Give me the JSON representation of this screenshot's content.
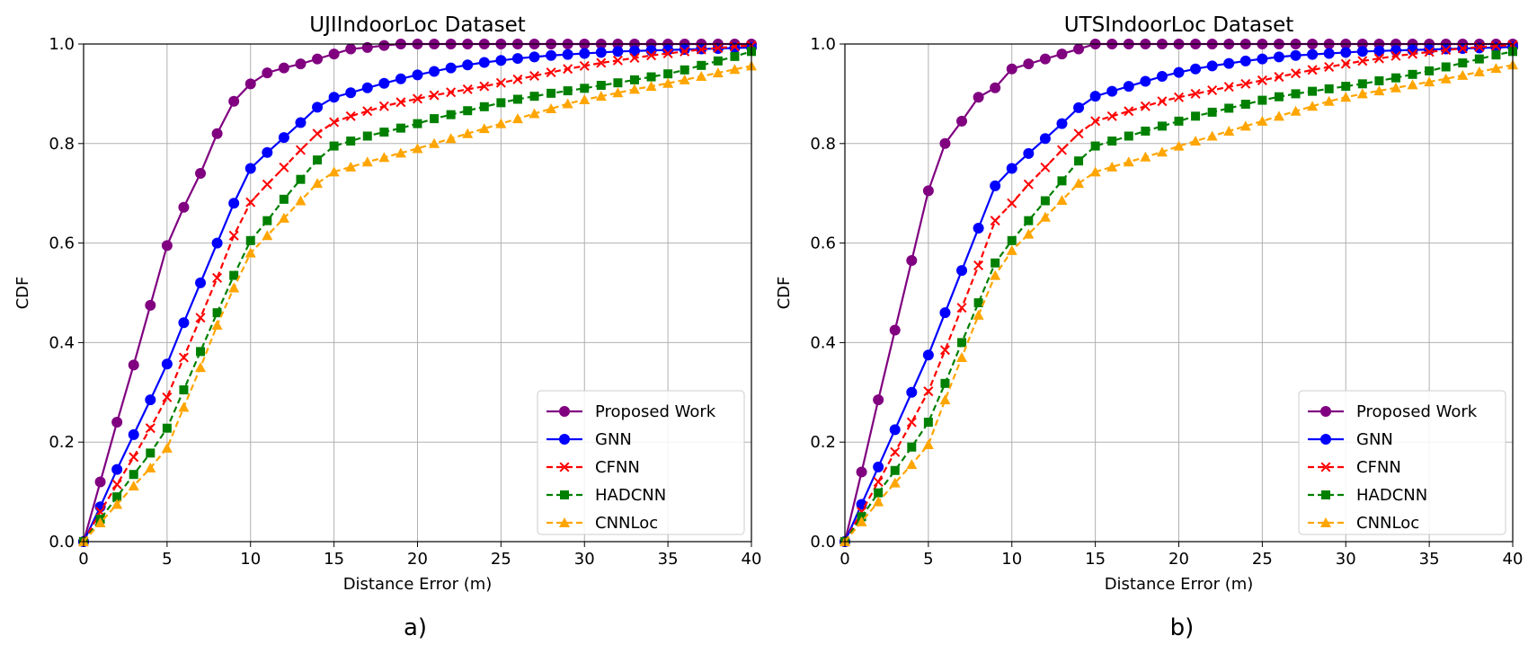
{
  "chart_data": [
    {
      "type": "line",
      "title": "UJIIndoorLoc Dataset",
      "xlabel": "Distance Error (m)",
      "ylabel": "CDF",
      "xlim": [
        0,
        40
      ],
      "ylim": [
        0,
        1
      ],
      "xticks": [
        0,
        5,
        10,
        15,
        20,
        25,
        30,
        35,
        40
      ],
      "yticks": [
        0.0,
        0.2,
        0.4,
        0.6,
        0.8,
        1.0
      ],
      "xtick_labels": [
        "0",
        "5",
        "10",
        "15",
        "20",
        "25",
        "30",
        "35",
        "40"
      ],
      "ytick_labels": [
        "0.0",
        "0.2",
        "0.4",
        "0.6",
        "0.8",
        "1.0"
      ],
      "grid": true,
      "legend_position": "lower-right",
      "caption": "a)",
      "x": [
        0,
        1,
        2,
        3,
        4,
        5,
        6,
        7,
        8,
        9,
        10,
        11,
        12,
        13,
        14,
        15,
        16,
        17,
        18,
        19,
        20,
        21,
        22,
        23,
        24,
        25,
        26,
        27,
        28,
        29,
        30,
        31,
        32,
        33,
        34,
        35,
        36,
        37,
        38,
        39,
        40
      ],
      "series": [
        {
          "name": "Proposed Work",
          "color": "#800080",
          "marker": "circle",
          "dash": false,
          "values": [
            0.0,
            0.12,
            0.24,
            0.355,
            0.475,
            0.595,
            0.672,
            0.74,
            0.82,
            0.885,
            0.92,
            0.942,
            0.952,
            0.96,
            0.97,
            0.98,
            0.99,
            0.993,
            0.997,
            1.0,
            1.0,
            1.0,
            1.0,
            1.0,
            1.0,
            1.0,
            1.0,
            1.0,
            1.0,
            1.0,
            1.0,
            1.0,
            1.0,
            1.0,
            1.0,
            1.0,
            1.0,
            1.0,
            1.0,
            1.0,
            1.0
          ]
        },
        {
          "name": "GNN",
          "color": "#0000ff",
          "marker": "circle",
          "dash": false,
          "values": [
            0.0,
            0.07,
            0.145,
            0.215,
            0.285,
            0.357,
            0.44,
            0.52,
            0.6,
            0.68,
            0.75,
            0.782,
            0.812,
            0.842,
            0.873,
            0.893,
            0.902,
            0.912,
            0.921,
            0.93,
            0.938,
            0.945,
            0.952,
            0.958,
            0.963,
            0.967,
            0.971,
            0.974,
            0.977,
            0.979,
            0.981,
            0.983,
            0.985,
            0.986,
            0.987,
            0.988,
            0.989,
            0.99,
            0.991,
            0.992,
            0.993
          ]
        },
        {
          "name": "CFNN",
          "color": "#ff0000",
          "marker": "x",
          "dash": true,
          "values": [
            0.0,
            0.06,
            0.115,
            0.17,
            0.228,
            0.29,
            0.37,
            0.45,
            0.53,
            0.615,
            0.682,
            0.718,
            0.752,
            0.787,
            0.82,
            0.843,
            0.855,
            0.865,
            0.875,
            0.883,
            0.89,
            0.897,
            0.903,
            0.909,
            0.915,
            0.922,
            0.929,
            0.936,
            0.943,
            0.95,
            0.956,
            0.962,
            0.967,
            0.972,
            0.977,
            0.981,
            0.985,
            0.989,
            0.992,
            0.995,
            0.997
          ]
        },
        {
          "name": "HADCNN",
          "color": "#008000",
          "marker": "square",
          "dash": true,
          "values": [
            0.0,
            0.045,
            0.09,
            0.135,
            0.178,
            0.228,
            0.305,
            0.382,
            0.46,
            0.535,
            0.605,
            0.645,
            0.688,
            0.728,
            0.767,
            0.795,
            0.805,
            0.815,
            0.823,
            0.831,
            0.84,
            0.85,
            0.858,
            0.866,
            0.874,
            0.882,
            0.889,
            0.895,
            0.901,
            0.906,
            0.911,
            0.917,
            0.922,
            0.928,
            0.934,
            0.94,
            0.948,
            0.957,
            0.966,
            0.975,
            0.985
          ]
        },
        {
          "name": "CNNLoc",
          "color": "#ffa500",
          "marker": "triangle",
          "dash": true,
          "values": [
            0.0,
            0.038,
            0.075,
            0.112,
            0.148,
            0.188,
            0.27,
            0.35,
            0.435,
            0.51,
            0.58,
            0.615,
            0.65,
            0.685,
            0.72,
            0.743,
            0.753,
            0.763,
            0.772,
            0.781,
            0.79,
            0.8,
            0.81,
            0.82,
            0.83,
            0.84,
            0.85,
            0.86,
            0.87,
            0.88,
            0.888,
            0.895,
            0.902,
            0.909,
            0.915,
            0.921,
            0.928,
            0.935,
            0.942,
            0.949,
            0.956
          ]
        }
      ]
    },
    {
      "type": "line",
      "title": "UTSIndoorLoc Dataset",
      "xlabel": "Distance Error (m)",
      "ylabel": "CDF",
      "xlim": [
        0,
        40
      ],
      "ylim": [
        0,
        1
      ],
      "xticks": [
        0,
        5,
        10,
        15,
        20,
        25,
        30,
        35,
        40
      ],
      "yticks": [
        0.0,
        0.2,
        0.4,
        0.6,
        0.8,
        1.0
      ],
      "xtick_labels": [
        "0",
        "5",
        "10",
        "15",
        "20",
        "25",
        "30",
        "35",
        "40"
      ],
      "ytick_labels": [
        "0.0",
        "0.2",
        "0.4",
        "0.6",
        "0.8",
        "1.0"
      ],
      "grid": true,
      "legend_position": "lower-right",
      "caption": "b)",
      "x": [
        0,
        1,
        2,
        3,
        4,
        5,
        6,
        7,
        8,
        9,
        10,
        11,
        12,
        13,
        14,
        15,
        16,
        17,
        18,
        19,
        20,
        21,
        22,
        23,
        24,
        25,
        26,
        27,
        28,
        29,
        30,
        31,
        32,
        33,
        34,
        35,
        36,
        37,
        38,
        39,
        40
      ],
      "series": [
        {
          "name": "Proposed Work",
          "color": "#800080",
          "marker": "circle",
          "dash": false,
          "values": [
            0.0,
            0.14,
            0.285,
            0.425,
            0.565,
            0.705,
            0.8,
            0.845,
            0.893,
            0.912,
            0.95,
            0.96,
            0.97,
            0.98,
            0.99,
            1.0,
            1.0,
            1.0,
            1.0,
            1.0,
            1.0,
            1.0,
            1.0,
            1.0,
            1.0,
            1.0,
            1.0,
            1.0,
            1.0,
            1.0,
            1.0,
            1.0,
            1.0,
            1.0,
            1.0,
            1.0,
            1.0,
            1.0,
            1.0,
            1.0,
            1.0
          ]
        },
        {
          "name": "GNN",
          "color": "#0000ff",
          "marker": "circle",
          "dash": false,
          "values": [
            0.0,
            0.075,
            0.15,
            0.225,
            0.3,
            0.375,
            0.46,
            0.545,
            0.63,
            0.715,
            0.75,
            0.78,
            0.81,
            0.84,
            0.872,
            0.895,
            0.905,
            0.915,
            0.925,
            0.935,
            0.943,
            0.95,
            0.956,
            0.961,
            0.966,
            0.97,
            0.974,
            0.977,
            0.979,
            0.981,
            0.983,
            0.985,
            0.986,
            0.987,
            0.988,
            0.989,
            0.99,
            0.991,
            0.992,
            0.993,
            0.994
          ]
        },
        {
          "name": "CFNN",
          "color": "#ff0000",
          "marker": "x",
          "dash": true,
          "values": [
            0.0,
            0.06,
            0.12,
            0.18,
            0.24,
            0.302,
            0.385,
            0.47,
            0.555,
            0.645,
            0.68,
            0.718,
            0.752,
            0.787,
            0.82,
            0.845,
            0.855,
            0.865,
            0.875,
            0.885,
            0.893,
            0.9,
            0.907,
            0.914,
            0.92,
            0.927,
            0.934,
            0.941,
            0.948,
            0.954,
            0.96,
            0.966,
            0.971,
            0.976,
            0.98,
            0.984,
            0.988,
            0.991,
            0.994,
            0.996,
            0.998
          ]
        },
        {
          "name": "HADCNN",
          "color": "#008000",
          "marker": "square",
          "dash": true,
          "values": [
            0.0,
            0.05,
            0.098,
            0.143,
            0.19,
            0.24,
            0.318,
            0.4,
            0.48,
            0.56,
            0.605,
            0.645,
            0.685,
            0.725,
            0.765,
            0.795,
            0.805,
            0.815,
            0.825,
            0.835,
            0.845,
            0.855,
            0.863,
            0.871,
            0.879,
            0.887,
            0.894,
            0.9,
            0.905,
            0.91,
            0.915,
            0.92,
            0.926,
            0.932,
            0.939,
            0.946,
            0.954,
            0.962,
            0.97,
            0.978,
            0.985
          ]
        },
        {
          "name": "CNNLoc",
          "color": "#ffa500",
          "marker": "triangle",
          "dash": true,
          "values": [
            0.0,
            0.04,
            0.08,
            0.118,
            0.155,
            0.195,
            0.285,
            0.37,
            0.455,
            0.535,
            0.585,
            0.618,
            0.652,
            0.686,
            0.72,
            0.743,
            0.753,
            0.763,
            0.773,
            0.783,
            0.795,
            0.805,
            0.815,
            0.825,
            0.835,
            0.845,
            0.855,
            0.865,
            0.875,
            0.885,
            0.893,
            0.9,
            0.906,
            0.912,
            0.918,
            0.924,
            0.93,
            0.937,
            0.944,
            0.951,
            0.958
          ]
        }
      ]
    }
  ]
}
